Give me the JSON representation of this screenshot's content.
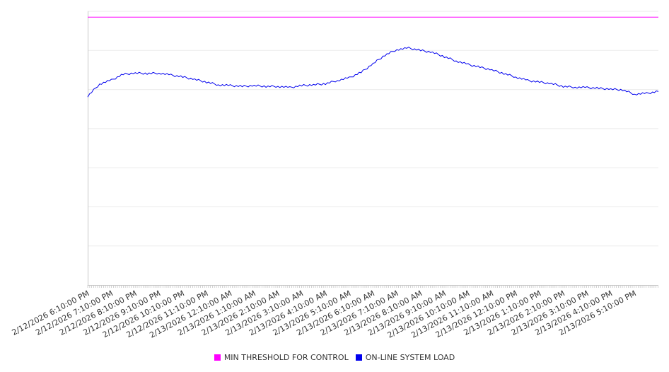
{
  "chart_data": {
    "type": "line",
    "title": "",
    "xlabel": "",
    "ylabel": "",
    "x_tick_labels": [
      "2/12/2026 6:10:00 PM",
      "2/12/2026 7:10:00 PM",
      "2/12/2026 8:10:00 PM",
      "2/12/2026 9:10:00 PM",
      "2/12/2026 10:10:00 PM",
      "2/12/2026 11:10:00 PM",
      "2/13/2026 12:10:00 AM",
      "2/13/2026 1:10:00 AM",
      "2/13/2026 2:10:00 AM",
      "2/13/2026 3:10:00 AM",
      "2/13/2026 4:10:00 AM",
      "2/13/2026 5:10:00 AM",
      "2/13/2026 6:10:00 AM",
      "2/13/2026 7:10:00 AM",
      "2/13/2026 8:10:00 AM",
      "2/13/2026 9:10:00 AM",
      "2/13/2026 10:10:00 AM",
      "2/13/2026 11:10:00 AM",
      "2/13/2026 12:10:00 PM",
      "2/13/2026 1:10:00 PM",
      "2/13/2026 2:10:00 PM",
      "2/13/2026 3:10:00 PM",
      "2/13/2026 4:10:00 PM",
      "2/13/2026 5:10:00 PM"
    ],
    "x_range_hours": [
      0,
      24
    ],
    "ylim": [
      0,
      7
    ],
    "y_gridlines": [
      0,
      1,
      2,
      3,
      4,
      5,
      6,
      7
    ],
    "grid": true,
    "legend_position": "bottom",
    "series": [
      {
        "name": "MIN THRESHOLD FOR CONTROL",
        "color": "#ff00ff",
        "constant": 6.85
      },
      {
        "name": "ON-LINE SYSTEM LOAD",
        "color": "#0000ee",
        "step_hours": 0.5,
        "values": [
          4.83,
          5.14,
          5.24,
          5.39,
          5.42,
          5.41,
          5.42,
          5.37,
          5.32,
          5.26,
          5.19,
          5.12,
          5.1,
          5.08,
          5.1,
          5.08,
          5.08,
          5.05,
          5.1,
          5.12,
          5.15,
          5.23,
          5.3,
          5.44,
          5.66,
          5.88,
          6.02,
          6.06,
          6.0,
          5.95,
          5.84,
          5.73,
          5.64,
          5.57,
          5.5,
          5.41,
          5.32,
          5.23,
          5.19,
          5.15,
          5.08,
          5.06,
          5.05,
          5.03,
          5.01,
          4.99,
          4.88,
          4.9,
          4.95
        ]
      }
    ]
  }
}
